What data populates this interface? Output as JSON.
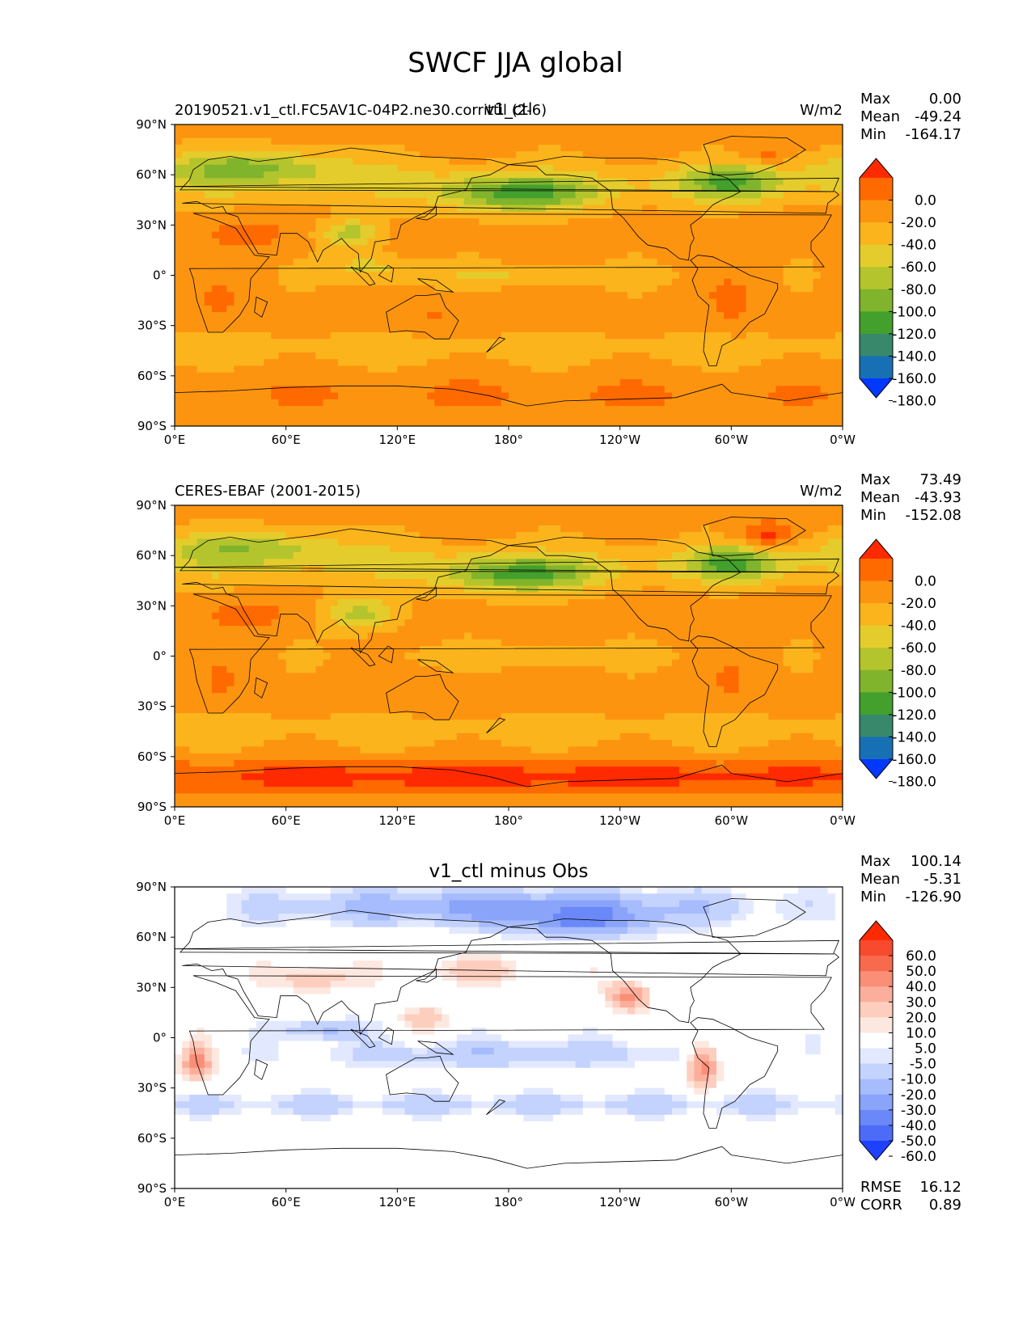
{
  "title": "SWCF JJA global",
  "lon_ticks": [
    "0°E",
    "60°E",
    "120°E",
    "180°",
    "120°W",
    "60°W",
    "0°W"
  ],
  "lat_ticks": [
    "90°N",
    "60°N",
    "30°N",
    "0°",
    "30°S",
    "60°S",
    "90°S"
  ],
  "panels": [
    {
      "id": "model",
      "left_label": "20190521.v1_ctl.FC5AV1C-04P2.ne30.corrittil (2-6)",
      "center_label": "v1_ctl",
      "units": "W/m2",
      "stats": [
        [
          "Max",
          "0.00"
        ],
        [
          "Mean",
          "-49.24"
        ],
        [
          "Min",
          "-164.17"
        ]
      ],
      "colorbar": {
        "labels": [
          "0.0",
          "-20.0",
          "-40.0",
          "-60.0",
          "-80.0",
          "-100.0",
          "-120.0",
          "-140.0",
          "-160.0",
          "-180.0"
        ],
        "colors": [
          "#ff2a00",
          "#ff6a00",
          "#fd9410",
          "#fbb41c",
          "#e4cc2c",
          "#b4c42c",
          "#80b42c",
          "#44a02c",
          "#38886c",
          "#1870b4",
          "#0238ff"
        ]
      }
    },
    {
      "id": "obs",
      "left_label": "CERES-EBAF (2001-2015)",
      "center_label": "",
      "units": "W/m2",
      "stats": [
        [
          "Max",
          "73.49"
        ],
        [
          "Mean",
          "-43.93"
        ],
        [
          "Min",
          "-152.08"
        ]
      ],
      "colorbar": {
        "labels": [
          "0.0",
          "-20.0",
          "-40.0",
          "-60.0",
          "-80.0",
          "-100.0",
          "-120.0",
          "-140.0",
          "-160.0",
          "-180.0"
        ],
        "colors": [
          "#ff2a00",
          "#ff6a00",
          "#fd9410",
          "#fbb41c",
          "#e4cc2c",
          "#b4c42c",
          "#80b42c",
          "#44a02c",
          "#38886c",
          "#1870b4",
          "#0238ff"
        ]
      }
    },
    {
      "id": "diff",
      "left_label": "",
      "center_label": "v1_ctl minus Obs",
      "units": "",
      "stats": [
        [
          "Max",
          "100.14"
        ],
        [
          "Mean",
          "-5.31"
        ],
        [
          "Min",
          "-126.90"
        ]
      ],
      "extra_stats": [
        [
          "RMSE",
          "16.12"
        ],
        [
          "CORR",
          "0.89"
        ]
      ],
      "colorbar": {
        "labels": [
          "60.0",
          "50.0",
          "40.0",
          "30.0",
          "20.0",
          "10.0",
          "5.0",
          "-5.0",
          "-10.0",
          "-20.0",
          "-30.0",
          "-40.0",
          "-50.0",
          "-60.0"
        ],
        "colors": [
          "#ff2a00",
          "#f84a2e",
          "#f86a4e",
          "#fa8e76",
          "#fcae9c",
          "#fdcebe",
          "#fde8e0",
          "#ffffff",
          "#e2e8fe",
          "#c4d2fe",
          "#a6bcfc",
          "#8aa4fa",
          "#6a88f8",
          "#4c6cf8",
          "#1e40ff"
        ]
      }
    }
  ],
  "chart_data": [
    {
      "type": "heatmap",
      "title": "v1_ctl",
      "units": "W/m2",
      "x_ticks": [
        "0°E",
        "60°E",
        "120°E",
        "180°",
        "120°W",
        "60°W",
        "0°W"
      ],
      "y_ticks": [
        "90°N",
        "60°N",
        "30°N",
        "0°",
        "30°S",
        "60°S",
        "90°S"
      ],
      "xlim": [
        0,
        360
      ],
      "ylim": [
        -90,
        90
      ],
      "levels": [
        0,
        -20,
        -40,
        -60,
        -80,
        -100,
        -120,
        -140,
        -160,
        -180
      ],
      "fields": {
        "base": -35,
        "blobs": [
          {
            "lon": 185,
            "lat": 48,
            "w": 40,
            "h": 10,
            "v": -80
          },
          {
            "lon": 95,
            "lat": 25,
            "w": 15,
            "h": 8,
            "v": -55
          },
          {
            "lon": 300,
            "lat": 55,
            "w": 25,
            "h": 10,
            "v": -65
          },
          {
            "lon": 40,
            "lat": 65,
            "w": 50,
            "h": 10,
            "v": -60
          },
          {
            "lon": 190,
            "lat": 0,
            "w": 70,
            "h": 6,
            "v": -25
          },
          {
            "lon": 105,
            "lat": 5,
            "w": 20,
            "h": 8,
            "v": -35
          },
          {
            "lon": 25,
            "lat": -15,
            "w": 10,
            "h": 10,
            "v": 20
          },
          {
            "lon": 300,
            "lat": -15,
            "w": 12,
            "h": 14,
            "v": 22
          },
          {
            "lon": 140,
            "lat": -25,
            "w": 14,
            "h": 8,
            "v": 18
          },
          {
            "lon": 40,
            "lat": 25,
            "w": 25,
            "h": 10,
            "v": 25
          },
          {
            "lon": 318,
            "lat": 72,
            "w": 12,
            "h": 6,
            "v": 25
          },
          {
            "lon": 180,
            "lat": -72,
            "w": 360,
            "h": 14,
            "v": 15
          }
        ]
      },
      "stats": {
        "max": 0.0,
        "mean": -49.24,
        "min": -164.17
      }
    },
    {
      "type": "heatmap",
      "title": "CERES-EBAF (2001-2015)",
      "units": "W/m2",
      "x_ticks": [
        "0°E",
        "60°E",
        "120°E",
        "180°",
        "120°W",
        "60°W",
        "0°W"
      ],
      "y_ticks": [
        "90°N",
        "60°N",
        "30°N",
        "0°",
        "30°S",
        "60°S",
        "90°S"
      ],
      "xlim": [
        0,
        360
      ],
      "ylim": [
        -90,
        90
      ],
      "levels": [
        0,
        -20,
        -40,
        -60,
        -80,
        -100,
        -120,
        -140,
        -160,
        -180
      ],
      "fields": {
        "base": -35,
        "blobs": [
          {
            "lon": 185,
            "lat": 48,
            "w": 40,
            "h": 10,
            "v": -75
          },
          {
            "lon": 100,
            "lat": 25,
            "w": 18,
            "h": 10,
            "v": -55
          },
          {
            "lon": 300,
            "lat": 55,
            "w": 22,
            "h": 10,
            "v": -70
          },
          {
            "lon": 40,
            "lat": 65,
            "w": 50,
            "h": 10,
            "v": -50
          },
          {
            "lon": 190,
            "lat": 0,
            "w": 70,
            "h": 6,
            "v": -20
          },
          {
            "lon": 25,
            "lat": -15,
            "w": 10,
            "h": 10,
            "v": 18
          },
          {
            "lon": 300,
            "lat": -15,
            "w": 12,
            "h": 14,
            "v": 15
          },
          {
            "lon": 140,
            "lat": -25,
            "w": 14,
            "h": 8,
            "v": 15
          },
          {
            "lon": 40,
            "lat": 25,
            "w": 25,
            "h": 10,
            "v": 25
          },
          {
            "lon": 318,
            "lat": 72,
            "w": 15,
            "h": 8,
            "v": 45
          },
          {
            "lon": 180,
            "lat": -72,
            "w": 360,
            "h": 10,
            "v": 45
          }
        ]
      },
      "stats": {
        "max": 73.49,
        "mean": -43.93,
        "min": -152.08
      }
    },
    {
      "type": "heatmap",
      "title": "v1_ctl minus Obs",
      "x_ticks": [
        "0°E",
        "60°E",
        "120°E",
        "180°",
        "120°W",
        "60°W",
        "0°W"
      ],
      "y_ticks": [
        "90°N",
        "60°N",
        "30°N",
        "0°",
        "30°S",
        "60°S",
        "90°S"
      ],
      "xlim": [
        0,
        360
      ],
      "ylim": [
        -90,
        90
      ],
      "levels": [
        60,
        50,
        40,
        30,
        20,
        10,
        5,
        -5,
        -10,
        -20,
        -30,
        -40,
        -50,
        -60
      ],
      "fields": {
        "base": 0,
        "blobs": [
          {
            "lon": 180,
            "lat": 78,
            "w": 120,
            "h": 10,
            "v": -35
          },
          {
            "lon": 220,
            "lat": 68,
            "w": 40,
            "h": 8,
            "v": -30
          },
          {
            "lon": 180,
            "lat": -10,
            "w": 100,
            "h": 8,
            "v": -18
          },
          {
            "lon": 80,
            "lat": 5,
            "w": 20,
            "h": 6,
            "v": -25
          },
          {
            "lon": 180,
            "lat": -40,
            "w": 360,
            "h": 6,
            "v": -14
          },
          {
            "lon": 245,
            "lat": 25,
            "w": 10,
            "h": 8,
            "v": 35
          },
          {
            "lon": 285,
            "lat": -15,
            "w": 8,
            "h": 12,
            "v": 40
          },
          {
            "lon": 12,
            "lat": -15,
            "w": 8,
            "h": 10,
            "v": 35
          },
          {
            "lon": 75,
            "lat": 35,
            "w": 20,
            "h": 8,
            "v": 18
          },
          {
            "lon": 160,
            "lat": 40,
            "w": 30,
            "h": 8,
            "v": 14
          },
          {
            "lon": 135,
            "lat": 12,
            "w": 12,
            "h": 6,
            "v": 15
          }
        ]
      },
      "stats": {
        "max": 100.14,
        "mean": -5.31,
        "min": -126.9,
        "rmse": 16.12,
        "corr": 0.89
      }
    }
  ]
}
